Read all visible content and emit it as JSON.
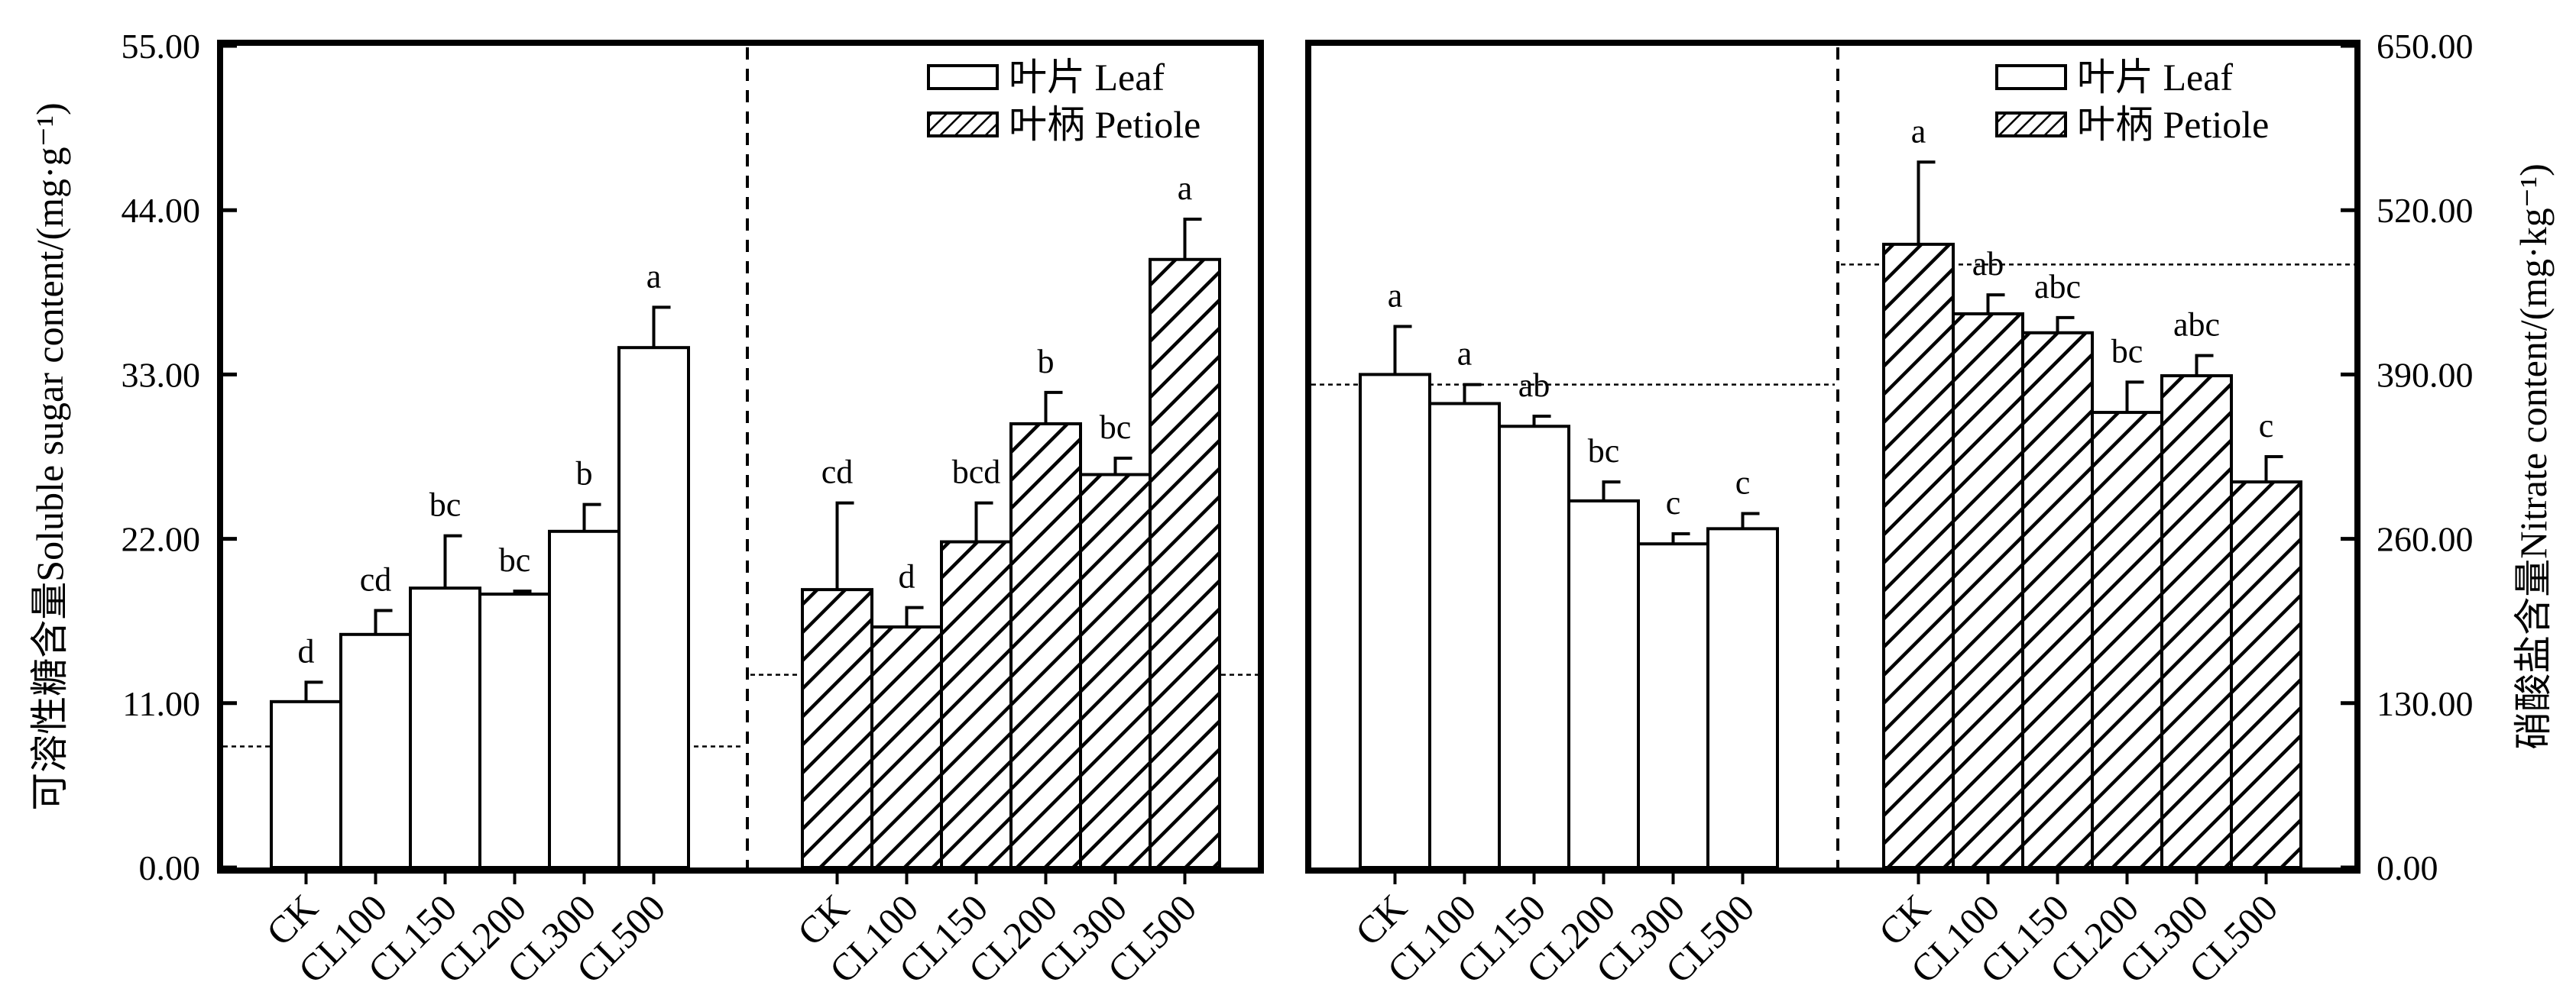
{
  "chart_data": [
    {
      "type": "bar",
      "y_axis_side": "left",
      "ylabel": "可溶性糖含量Soluble sugar content/(mg·g⁻¹)",
      "ylim": [
        0,
        55
      ],
      "yticks": [
        "0.00",
        "11.00",
        "22.00",
        "33.00",
        "44.00",
        "55.00"
      ],
      "groups": [
        {
          "series": "叶片 Leaf",
          "categories": [
            "CK",
            "CL100",
            "CL150",
            "CL200",
            "CL300",
            "CL500"
          ],
          "values": [
            11.1,
            15.6,
            18.7,
            18.3,
            22.5,
            34.8
          ],
          "errors": [
            1.3,
            1.6,
            3.5,
            0.2,
            1.8,
            2.7
          ],
          "letters": [
            "d",
            "cd",
            "bc",
            "bc",
            "b",
            "a"
          ],
          "reference_line": 8.1
        },
        {
          "series": "叶柄 Petiole",
          "categories": [
            "CK",
            "CL100",
            "CL150",
            "CL200",
            "CL300",
            "CL500"
          ],
          "values": [
            18.6,
            16.1,
            21.8,
            29.7,
            26.3,
            40.7
          ],
          "errors": [
            5.8,
            1.3,
            2.6,
            2.1,
            1.1,
            2.7
          ],
          "letters": [
            "cd",
            "d",
            "bcd",
            "b",
            "bc",
            "a"
          ],
          "reference_line": 12.9
        }
      ]
    },
    {
      "type": "bar",
      "y_axis_side": "right",
      "ylabel": "硝酸盐含量Nitrate content/(mg·kg⁻¹)",
      "ylim": [
        0,
        650
      ],
      "yticks": [
        "0.00",
        "130.00",
        "260.00",
        "390.00",
        "520.00",
        "650.00"
      ],
      "groups": [
        {
          "series": "叶片 Leaf",
          "categories": [
            "CK",
            "CL100",
            "CL150",
            "CL200",
            "CL300",
            "CL500"
          ],
          "values": [
            390,
            367,
            349,
            290,
            256,
            268
          ],
          "errors": [
            38,
            15,
            8,
            15,
            8,
            12
          ],
          "letters": [
            "a",
            "a",
            "ab",
            "bc",
            "c",
            "c"
          ],
          "reference_line": 382
        },
        {
          "series": "叶柄 Petiole",
          "categories": [
            "CK",
            "CL100",
            "CL150",
            "CL200",
            "CL300",
            "CL500"
          ],
          "values": [
            493,
            438,
            423,
            360,
            389,
            305
          ],
          "errors": [
            65,
            15,
            12,
            24,
            16,
            20
          ],
          "letters": [
            "a",
            "ab",
            "abc",
            "bc",
            "abc",
            "c"
          ],
          "reference_line": 477
        }
      ]
    }
  ],
  "legend": [
    {
      "label": "叶片 Leaf",
      "pattern": "open"
    },
    {
      "label": "叶柄 Petiole",
      "pattern": "hatched"
    }
  ]
}
